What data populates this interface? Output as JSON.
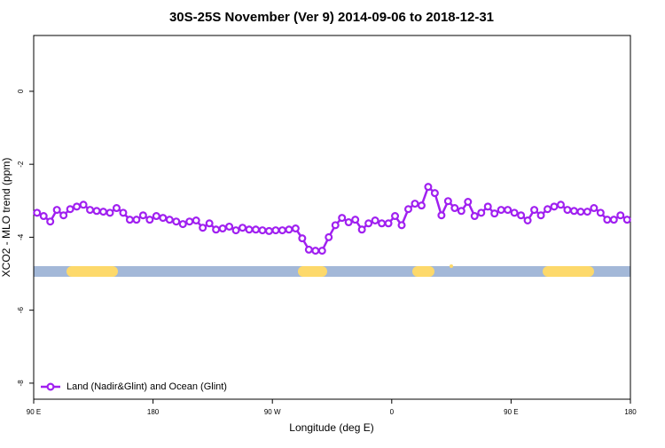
{
  "chart_data": {
    "type": "line",
    "title": "30S-25S November (Ver 9)   2014-09-06 to 2018-12-31",
    "x_label": "Longitude (deg E)",
    "y_label": "XCO2 - MLO trend (ppm)",
    "xlim": [
      90,
      540
    ],
    "ylim": [
      -8.44,
      1.53
    ],
    "xticks": [
      {
        "value": 90,
        "label": "90 E"
      },
      {
        "value": 180,
        "label": "180"
      },
      {
        "value": 270,
        "label": "90 W"
      },
      {
        "value": 360,
        "label": "0"
      },
      {
        "value": 450,
        "label": "90 E"
      },
      {
        "value": 540,
        "label": "180"
      }
    ],
    "yticks": [
      -8,
      -6,
      -4,
      -2,
      0
    ],
    "legend": "bottom-left",
    "x": [
      92.5,
      97.5,
      102.5,
      107.5,
      112.5,
      117.5,
      122.5,
      127.5,
      132.5,
      137.5,
      142.5,
      147.5,
      152.5,
      157.5,
      162.5,
      167.5,
      172.5,
      177.5,
      182.5,
      187.5,
      192.5,
      197.5,
      202.5,
      207.5,
      212.5,
      217.5,
      222.5,
      227.5,
      232.5,
      237.5,
      242.5,
      247.5,
      252.5,
      257.5,
      262.5,
      267.5,
      272.5,
      277.5,
      282.5,
      287.5,
      292.5,
      297.5,
      302.5,
      307.5,
      312.5,
      317.5,
      322.5,
      327.5,
      332.5,
      337.5,
      342.5,
      347.5,
      352.5,
      357.5,
      362.5,
      367.5,
      372.5,
      377.5,
      382.5,
      387.5,
      392.5,
      397.5,
      402.5,
      407.5,
      412.5,
      417.5,
      422.5,
      427.5,
      432.5,
      437.5,
      442.5,
      447.5,
      452.5,
      457.5,
      462.5,
      467.5,
      472.5,
      477.5,
      482.5,
      487.5,
      492.5,
      497.5,
      502.5,
      507.5,
      512.5,
      517.5,
      522.5,
      527.5,
      532.5,
      537.5
    ],
    "series": [
      {
        "name": "Land (Nadir&Glint) and Ocean (Glint)",
        "color": "#a020f0",
        "values": [
          -3.33,
          -3.42,
          -3.57,
          -3.25,
          -3.4,
          -3.23,
          -3.16,
          -3.11,
          -3.25,
          -3.28,
          -3.3,
          -3.33,
          -3.2,
          -3.33,
          -3.52,
          -3.52,
          -3.4,
          -3.52,
          -3.42,
          -3.47,
          -3.52,
          -3.57,
          -3.64,
          -3.57,
          -3.54,
          -3.74,
          -3.62,
          -3.79,
          -3.76,
          -3.71,
          -3.81,
          -3.74,
          -3.79,
          -3.79,
          -3.81,
          -3.83,
          -3.81,
          -3.81,
          -3.79,
          -3.76,
          -4.03,
          -4.34,
          -4.37,
          -4.37,
          -4.0,
          -3.67,
          -3.47,
          -3.59,
          -3.52,
          -3.79,
          -3.62,
          -3.54,
          -3.62,
          -3.62,
          -3.42,
          -3.67,
          -3.23,
          -3.08,
          -3.13,
          -2.62,
          -2.79,
          -3.4,
          -3.01,
          -3.2,
          -3.28,
          -3.03,
          -3.42,
          -3.33,
          -3.16,
          -3.35,
          -3.25,
          -3.25,
          -3.33,
          -3.4,
          -3.54,
          -3.25,
          -3.4,
          -3.23,
          -3.16,
          -3.11,
          -3.25,
          -3.28,
          -3.3,
          -3.3,
          -3.2,
          -3.33,
          -3.52,
          -3.52,
          -3.4,
          -3.52
        ]
      }
    ]
  }
}
